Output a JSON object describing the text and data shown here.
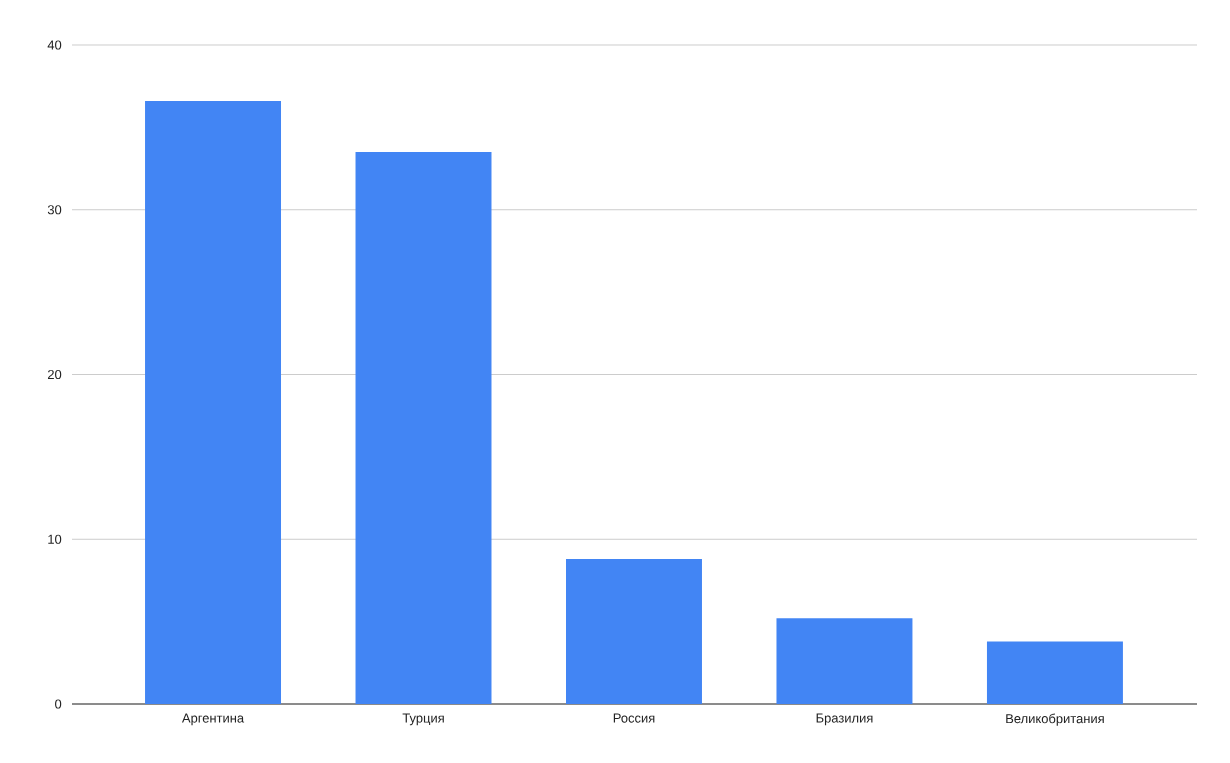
{
  "chart_data": {
    "type": "bar",
    "categories": [
      "Аргентина",
      "Турция",
      "Россия",
      "Бразилия",
      "Великобритания"
    ],
    "values": [
      36.6,
      33.5,
      8.8,
      5.2,
      3.8
    ],
    "color": "#4285f4",
    "ylim": [
      0,
      40
    ],
    "yticks": [
      0,
      10,
      20,
      30,
      40
    ],
    "grid": "y"
  }
}
